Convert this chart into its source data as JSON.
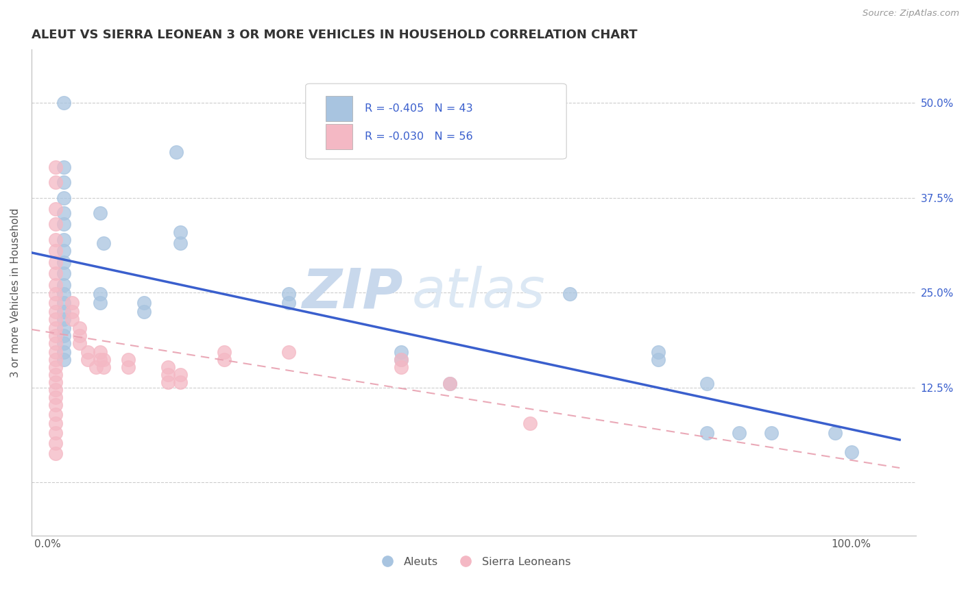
{
  "title": "ALEUT VS SIERRA LEONEAN 3 OR MORE VEHICLES IN HOUSEHOLD CORRELATION CHART",
  "source": "Source: ZipAtlas.com",
  "ylabel": "3 or more Vehicles in Household",
  "x_ticks": [
    0.0,
    0.25,
    0.5,
    0.75,
    1.0
  ],
  "x_tick_labels": [
    "0.0%",
    "",
    "",
    "",
    "100.0%"
  ],
  "y_ticks": [
    0.0,
    0.125,
    0.25,
    0.375,
    0.5
  ],
  "y_tick_labels_left": [
    "",
    "",
    "",
    "",
    ""
  ],
  "y_tick_labels_right": [
    "",
    "12.5%",
    "25.0%",
    "37.5%",
    "50.0%"
  ],
  "xlim": [
    -0.02,
    1.08
  ],
  "ylim": [
    -0.07,
    0.57
  ],
  "aleut_color": "#a8c4e0",
  "sierra_color": "#f4b8c4",
  "aleut_line_color": "#3a5fcd",
  "sierra_line_color": "#e8a0b0",
  "background_color": "#ffffff",
  "watermark_zip": "ZIP",
  "watermark_atlas": "atlas",
  "aleut_scatter": [
    [
      0.02,
      0.5
    ],
    [
      0.16,
      0.435
    ],
    [
      0.165,
      0.33
    ],
    [
      0.02,
      0.415
    ],
    [
      0.02,
      0.395
    ],
    [
      0.02,
      0.375
    ],
    [
      0.02,
      0.355
    ],
    [
      0.02,
      0.34
    ],
    [
      0.02,
      0.32
    ],
    [
      0.02,
      0.305
    ],
    [
      0.02,
      0.29
    ],
    [
      0.065,
      0.355
    ],
    [
      0.07,
      0.315
    ],
    [
      0.165,
      0.315
    ],
    [
      0.02,
      0.275
    ],
    [
      0.02,
      0.26
    ],
    [
      0.02,
      0.248
    ],
    [
      0.02,
      0.237
    ],
    [
      0.02,
      0.225
    ],
    [
      0.02,
      0.215
    ],
    [
      0.02,
      0.203
    ],
    [
      0.02,
      0.193
    ],
    [
      0.02,
      0.183
    ],
    [
      0.02,
      0.172
    ],
    [
      0.02,
      0.162
    ],
    [
      0.065,
      0.248
    ],
    [
      0.065,
      0.237
    ],
    [
      0.12,
      0.237
    ],
    [
      0.12,
      0.225
    ],
    [
      0.3,
      0.248
    ],
    [
      0.3,
      0.237
    ],
    [
      0.44,
      0.172
    ],
    [
      0.44,
      0.162
    ],
    [
      0.5,
      0.13
    ],
    [
      0.65,
      0.248
    ],
    [
      0.76,
      0.172
    ],
    [
      0.76,
      0.162
    ],
    [
      0.82,
      0.13
    ],
    [
      0.82,
      0.065
    ],
    [
      0.86,
      0.065
    ],
    [
      0.9,
      0.065
    ],
    [
      0.98,
      0.065
    ],
    [
      1.0,
      0.04
    ]
  ],
  "sierra_scatter": [
    [
      0.01,
      0.415
    ],
    [
      0.01,
      0.395
    ],
    [
      0.01,
      0.36
    ],
    [
      0.01,
      0.34
    ],
    [
      0.01,
      0.32
    ],
    [
      0.01,
      0.305
    ],
    [
      0.01,
      0.29
    ],
    [
      0.01,
      0.275
    ],
    [
      0.01,
      0.26
    ],
    [
      0.01,
      0.248
    ],
    [
      0.01,
      0.237
    ],
    [
      0.01,
      0.225
    ],
    [
      0.01,
      0.215
    ],
    [
      0.01,
      0.203
    ],
    [
      0.01,
      0.193
    ],
    [
      0.01,
      0.183
    ],
    [
      0.01,
      0.172
    ],
    [
      0.01,
      0.162
    ],
    [
      0.01,
      0.152
    ],
    [
      0.01,
      0.142
    ],
    [
      0.01,
      0.132
    ],
    [
      0.01,
      0.122
    ],
    [
      0.01,
      0.112
    ],
    [
      0.01,
      0.102
    ],
    [
      0.01,
      0.09
    ],
    [
      0.01,
      0.078
    ],
    [
      0.01,
      0.065
    ],
    [
      0.01,
      0.052
    ],
    [
      0.01,
      0.038
    ],
    [
      0.03,
      0.237
    ],
    [
      0.03,
      0.225
    ],
    [
      0.03,
      0.215
    ],
    [
      0.04,
      0.203
    ],
    [
      0.04,
      0.193
    ],
    [
      0.04,
      0.183
    ],
    [
      0.05,
      0.172
    ],
    [
      0.05,
      0.162
    ],
    [
      0.06,
      0.152
    ],
    [
      0.07,
      0.162
    ],
    [
      0.07,
      0.152
    ],
    [
      0.065,
      0.172
    ],
    [
      0.065,
      0.162
    ],
    [
      0.1,
      0.162
    ],
    [
      0.1,
      0.152
    ],
    [
      0.15,
      0.152
    ],
    [
      0.15,
      0.142
    ],
    [
      0.15,
      0.132
    ],
    [
      0.165,
      0.142
    ],
    [
      0.165,
      0.132
    ],
    [
      0.22,
      0.172
    ],
    [
      0.22,
      0.162
    ],
    [
      0.3,
      0.172
    ],
    [
      0.44,
      0.162
    ],
    [
      0.44,
      0.152
    ],
    [
      0.5,
      0.13
    ],
    [
      0.6,
      0.078
    ]
  ]
}
